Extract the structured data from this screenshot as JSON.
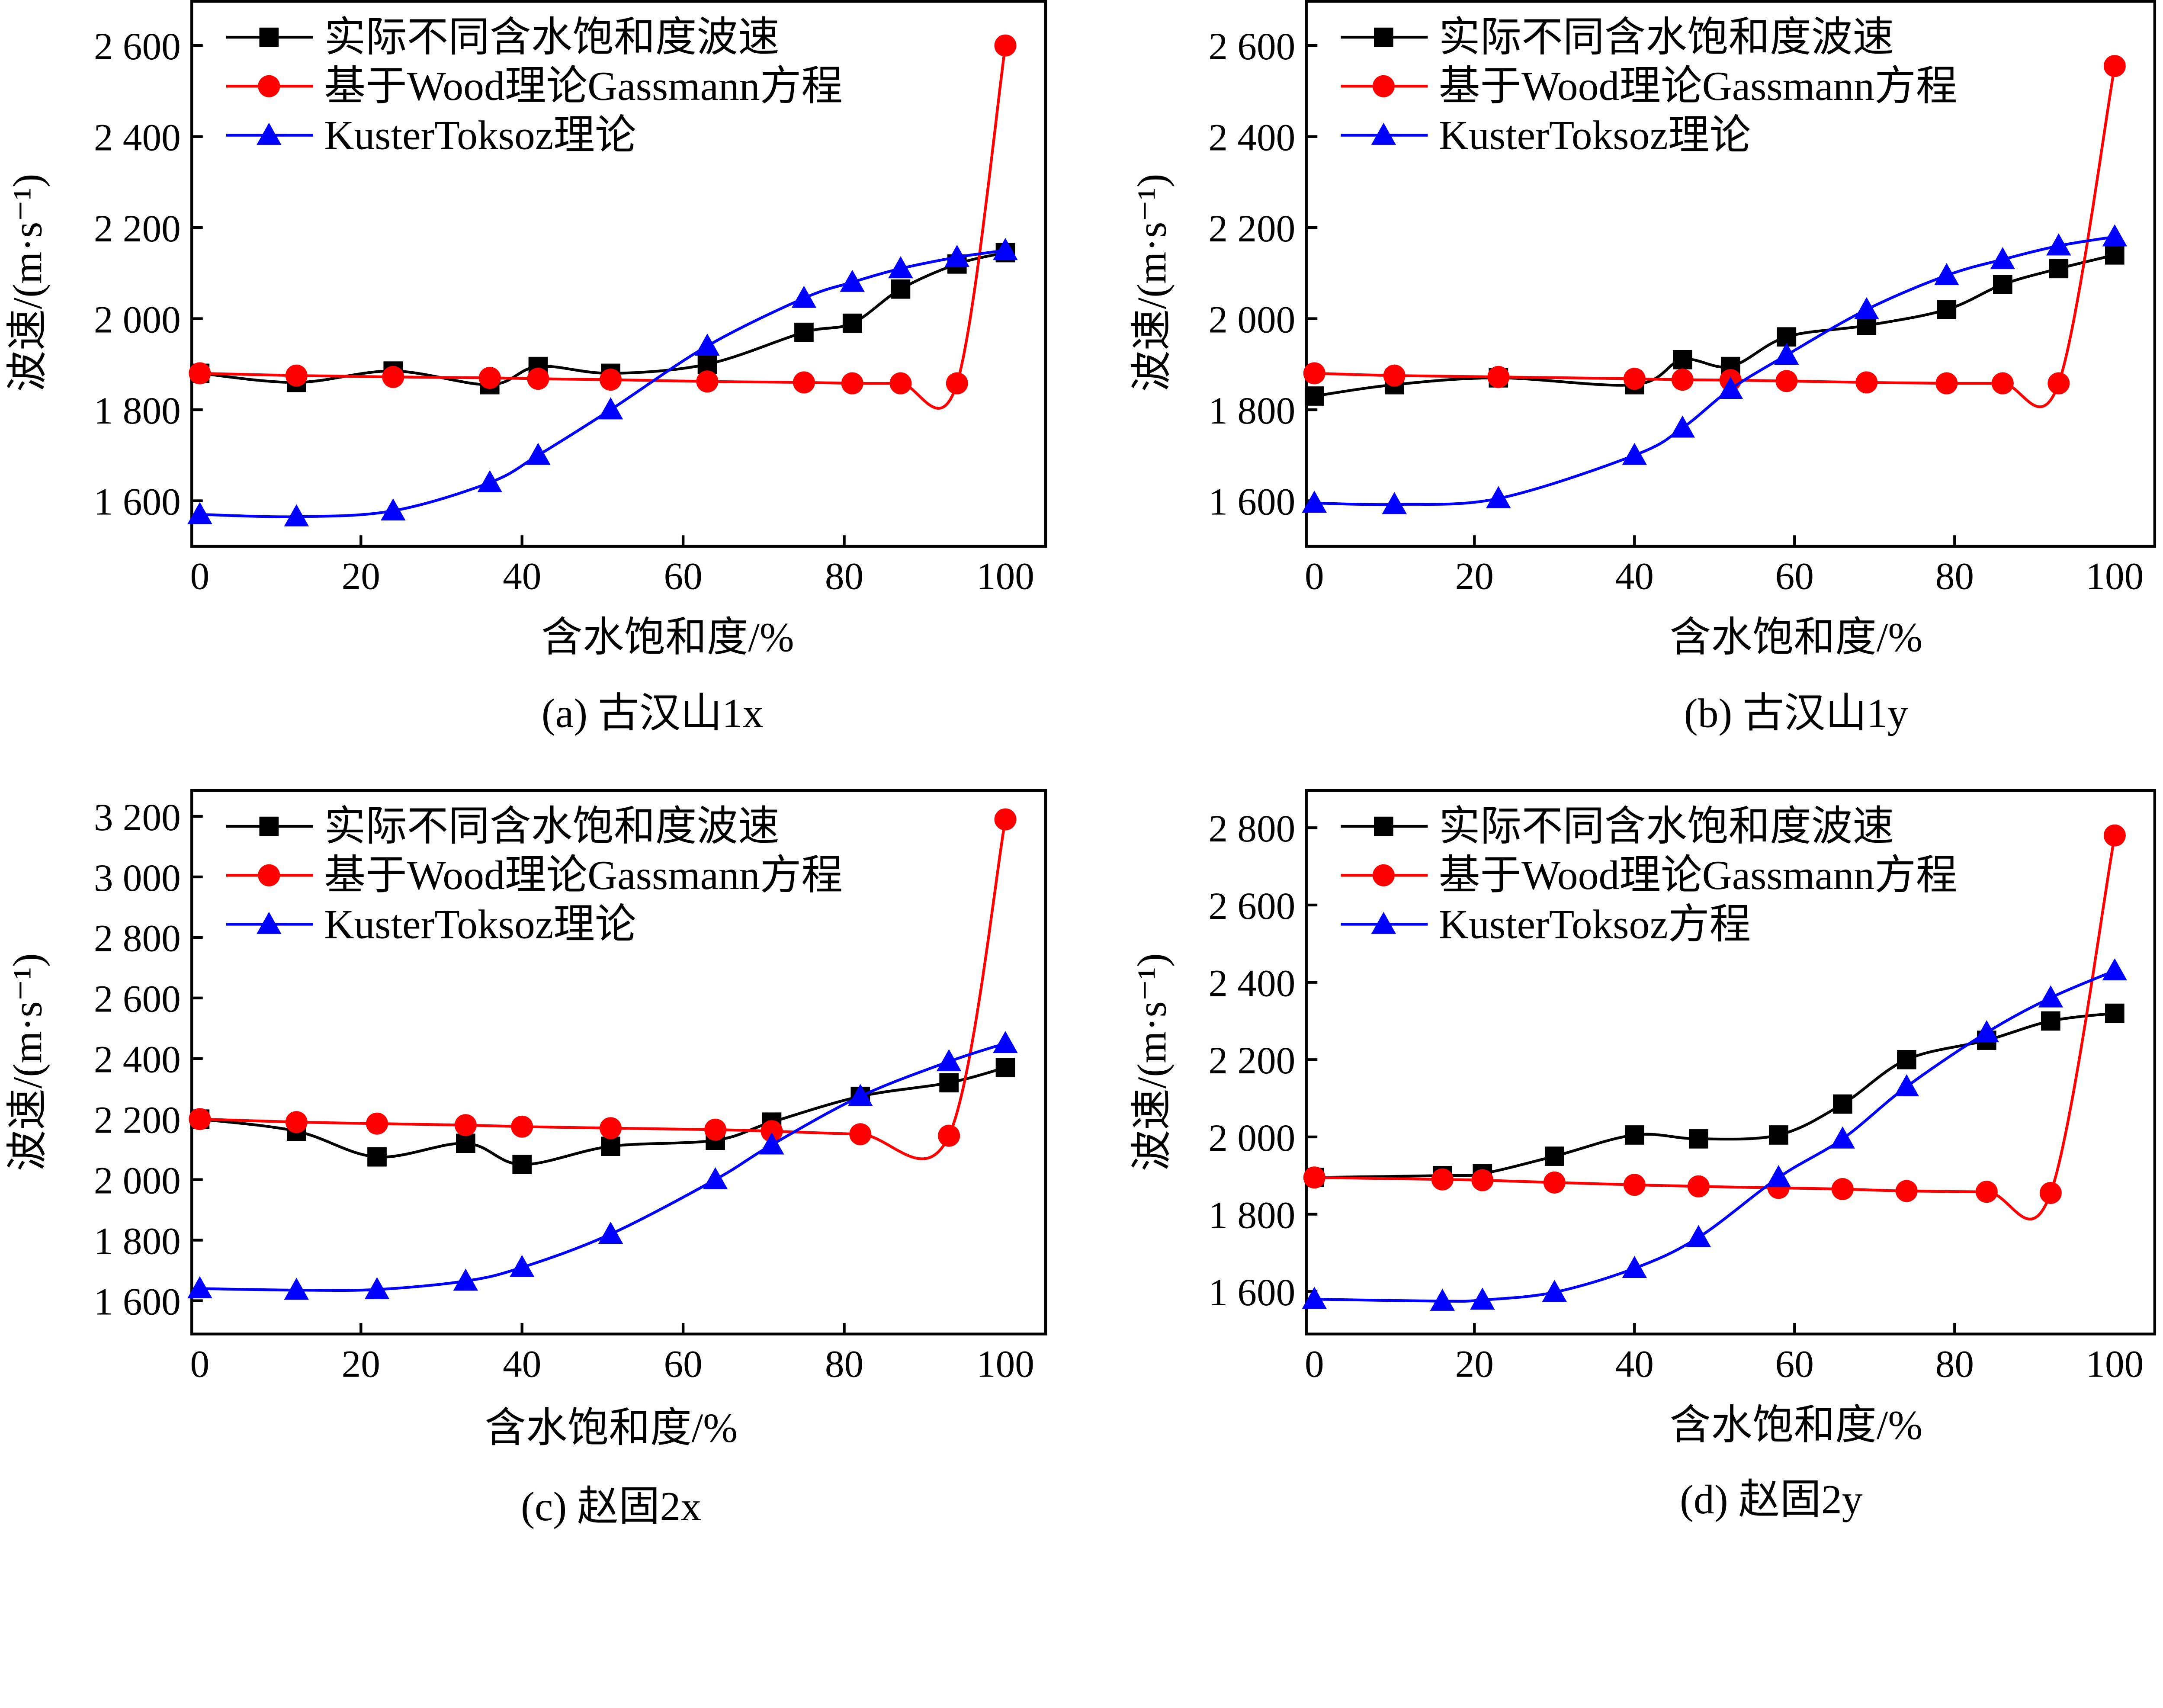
{
  "chart_data": [
    {
      "type": "line",
      "caption": "(a) 古汉山1x",
      "xlabel": "含水饱和度/%",
      "ylabel": "波速/(m·s⁻¹)",
      "xlim": [
        -1,
        105
      ],
      "ylim": [
        1500,
        2700
      ],
      "xticks": [
        0,
        20,
        40,
        60,
        80,
        100
      ],
      "yticks": [
        1600,
        1800,
        2000,
        2200,
        2400,
        2600
      ],
      "ytick_labels": [
        "1 600",
        "1 800",
        "2 000",
        "2 200",
        "2 400",
        "2 600"
      ],
      "grid": false,
      "legend_position": "top-left",
      "series": [
        {
          "name": "实际不同含水饱和度波速",
          "color": "#000000",
          "marker": "square",
          "x": [
            0,
            12,
            24,
            36,
            42,
            51,
            63,
            75,
            81,
            87,
            94,
            100
          ],
          "y": [
            1880,
            1860,
            1885,
            1855,
            1895,
            1880,
            1900,
            1970,
            1990,
            2065,
            2120,
            2145
          ]
        },
        {
          "name": "基于Wood理论Gassmann方程",
          "color": "#ff0000",
          "marker": "circle",
          "x": [
            0,
            12,
            24,
            36,
            42,
            51,
            63,
            75,
            81,
            87,
            94,
            100
          ],
          "y": [
            1880,
            1875,
            1872,
            1870,
            1868,
            1866,
            1862,
            1860,
            1858,
            1858,
            1858,
            2600
          ]
        },
        {
          "name": "KusterToksoz理论",
          "color": "#0000ff",
          "marker": "triangle",
          "x": [
            0,
            12,
            24,
            36,
            42,
            51,
            63,
            75,
            81,
            87,
            94,
            100
          ],
          "y": [
            1570,
            1565,
            1578,
            1640,
            1700,
            1800,
            1940,
            2045,
            2080,
            2110,
            2135,
            2150
          ]
        }
      ]
    },
    {
      "type": "line",
      "caption": "(b) 古汉山1y",
      "xlabel": "含水饱和度/%",
      "ylabel": "波速/(m·s⁻¹)",
      "xlim": [
        -1,
        105
      ],
      "ylim": [
        1500,
        2700
      ],
      "xticks": [
        0,
        20,
        40,
        60,
        80,
        100
      ],
      "yticks": [
        1600,
        1800,
        2000,
        2200,
        2400,
        2600
      ],
      "ytick_labels": [
        "1 600",
        "1 800",
        "2 000",
        "2 200",
        "2 400",
        "2 600"
      ],
      "grid": false,
      "legend_position": "top-left",
      "series": [
        {
          "name": "实际不同含水饱和度波速",
          "color": "#000000",
          "marker": "square",
          "x": [
            0,
            10,
            23,
            40,
            46,
            52,
            59,
            69,
            79,
            86,
            93,
            100
          ],
          "y": [
            1830,
            1855,
            1870,
            1855,
            1910,
            1895,
            1960,
            1985,
            2020,
            2075,
            2110,
            2140
          ]
        },
        {
          "name": "基于Wood理论Gassmann方程",
          "color": "#ff0000",
          "marker": "circle",
          "x": [
            0,
            10,
            23,
            40,
            46,
            52,
            59,
            69,
            79,
            86,
            93,
            100
          ],
          "y": [
            1880,
            1875,
            1872,
            1868,
            1866,
            1865,
            1863,
            1860,
            1858,
            1858,
            1858,
            2555
          ]
        },
        {
          "name": "KusterToksoz理论",
          "color": "#0000ff",
          "marker": "triangle",
          "x": [
            0,
            10,
            23,
            40,
            46,
            52,
            59,
            69,
            79,
            86,
            93,
            100
          ],
          "y": [
            1595,
            1592,
            1605,
            1700,
            1760,
            1845,
            1920,
            2020,
            2095,
            2130,
            2160,
            2180
          ]
        }
      ]
    },
    {
      "type": "line",
      "caption": "(c) 赵固2x",
      "xlabel": "含水饱和度/%",
      "ylabel": "波速/(m·s⁻¹)",
      "xlim": [
        -1,
        105
      ],
      "ylim": [
        1490,
        3290
      ],
      "xticks": [
        0,
        20,
        40,
        60,
        80,
        100
      ],
      "yticks": [
        1600,
        1800,
        2000,
        2200,
        2400,
        2600,
        2800,
        3000,
        3200
      ],
      "ytick_labels": [
        "1 600",
        "1 800",
        "2 000",
        "2 200",
        "2 400",
        "2 600",
        "2 800",
        "3 000",
        "3 200"
      ],
      "grid": false,
      "legend_position": "top-left",
      "series": [
        {
          "name": "实际不同含水饱和度波速",
          "color": "#000000",
          "marker": "square",
          "x": [
            0,
            12,
            22,
            33,
            40,
            51,
            64,
            71,
            82,
            93,
            100
          ],
          "y": [
            2200,
            2160,
            2075,
            2120,
            2050,
            2110,
            2130,
            2190,
            2275,
            2320,
            2370
          ]
        },
        {
          "name": "基于Wood理论Gassmann方程",
          "color": "#ff0000",
          "marker": "circle",
          "x": [
            0,
            12,
            22,
            33,
            40,
            51,
            64,
            71,
            82,
            93,
            100
          ],
          "y": [
            2200,
            2190,
            2185,
            2180,
            2175,
            2170,
            2165,
            2160,
            2150,
            2145,
            3190
          ]
        },
        {
          "name": "KusterToksoz理论",
          "color": "#0000ff",
          "marker": "triangle",
          "x": [
            0,
            12,
            22,
            33,
            40,
            51,
            64,
            71,
            82,
            93,
            100
          ],
          "y": [
            1640,
            1635,
            1637,
            1665,
            1710,
            1820,
            2000,
            2115,
            2275,
            2390,
            2450
          ]
        }
      ]
    },
    {
      "type": "line",
      "caption": "(d) 赵固2y",
      "xlabel": "含水饱和度/%",
      "ylabel": "波速/(m·s⁻¹)",
      "xlim": [
        -1,
        105
      ],
      "ylim": [
        1490,
        2900
      ],
      "xticks": [
        0,
        20,
        40,
        60,
        80,
        100
      ],
      "yticks": [
        1600,
        1800,
        2000,
        2200,
        2400,
        2600,
        2800
      ],
      "ytick_labels": [
        "1 600",
        "1 800",
        "2 000",
        "2 200",
        "2 400",
        "2 600",
        "2 800"
      ],
      "grid": false,
      "legend_position": "top-left",
      "series": [
        {
          "name": "实际不同含水饱和度波速",
          "color": "#000000",
          "marker": "square",
          "x": [
            0,
            16,
            21,
            30,
            40,
            48,
            58,
            66,
            74,
            84,
            92,
            100
          ],
          "y": [
            1895,
            1900,
            1905,
            1950,
            2005,
            1995,
            2005,
            2085,
            2200,
            2250,
            2300,
            2320
          ]
        },
        {
          "name": "基于Wood理论Gassmann方程",
          "color": "#ff0000",
          "marker": "circle",
          "x": [
            0,
            16,
            21,
            30,
            40,
            48,
            58,
            66,
            74,
            84,
            92,
            100
          ],
          "y": [
            1895,
            1890,
            1888,
            1882,
            1876,
            1872,
            1868,
            1865,
            1860,
            1858,
            1855,
            2780
          ]
        },
        {
          "name": "KusterToksoz方程",
          "color": "#0000ff",
          "marker": "triangle",
          "x": [
            0,
            16,
            21,
            30,
            40,
            48,
            58,
            66,
            74,
            84,
            92,
            100
          ],
          "y": [
            1580,
            1575,
            1578,
            1598,
            1660,
            1740,
            1895,
            1995,
            2130,
            2270,
            2360,
            2430
          ]
        }
      ]
    }
  ]
}
